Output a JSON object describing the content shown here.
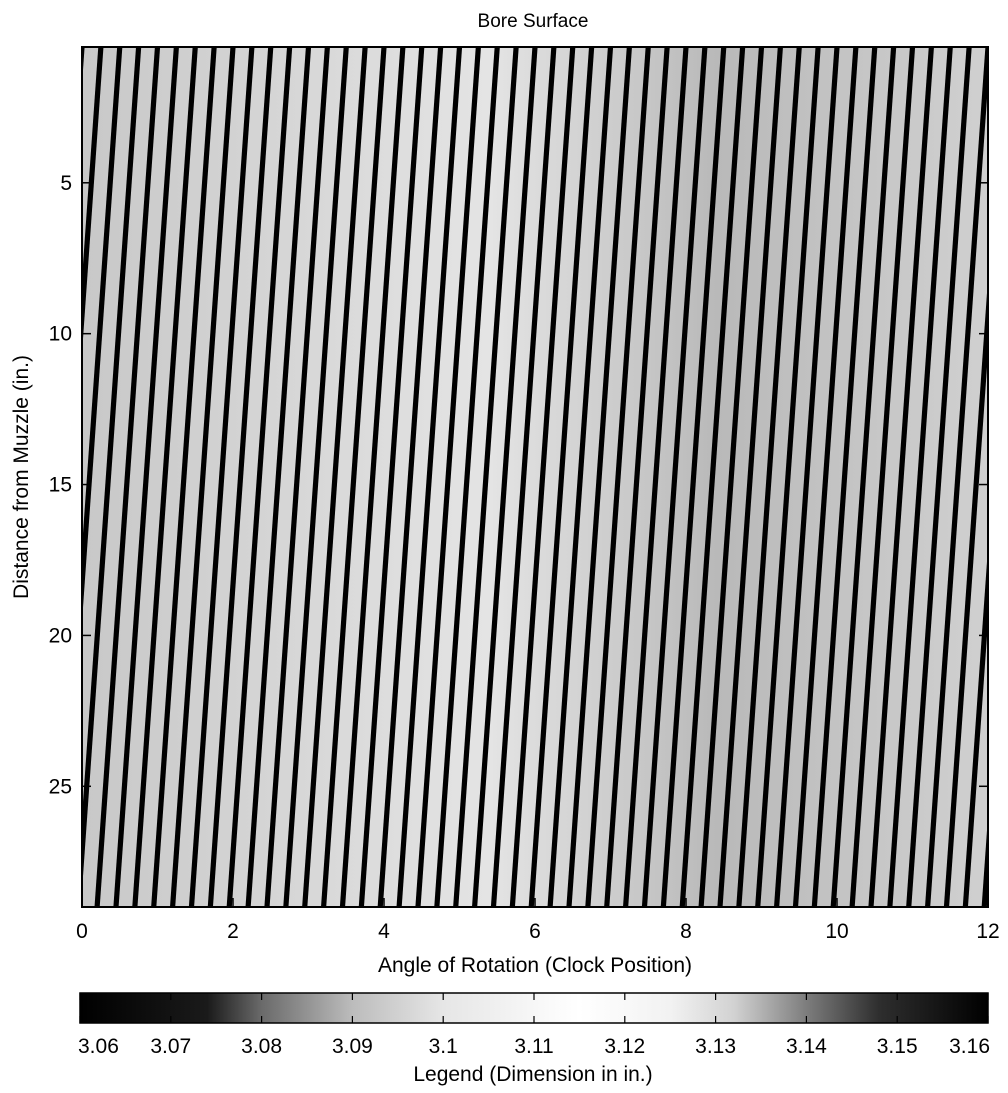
{
  "chart_data": {
    "type": "heatmap",
    "title": "Bore Surface",
    "xlabel": "Angle of Rotation (Clock Position)",
    "ylabel": "Distance from Muzzle (in.)",
    "xlim": [
      0,
      12
    ],
    "ylim": [
      29,
      0.5
    ],
    "x_ticks": [
      0,
      2,
      4,
      6,
      8,
      10,
      12
    ],
    "x_tick_labels": [
      "0",
      "2",
      "4",
      "6",
      "8",
      "10",
      "12"
    ],
    "y_ticks": [
      5,
      10,
      15,
      20,
      25
    ],
    "y_tick_labels": [
      "5",
      "10",
      "15",
      "20",
      "25"
    ],
    "y_reversed": true,
    "groove_count": 48,
    "groove_shift_clock_over_length": -0.8,
    "colorbar": {
      "label": "Legend (Dimension in in.)",
      "range": [
        3.06,
        3.16
      ],
      "ticks": [
        3.06,
        3.07,
        3.08,
        3.09,
        3.1,
        3.11,
        3.12,
        3.13,
        3.14,
        3.15,
        3.16
      ],
      "tick_labels": [
        "3.06",
        "3.07",
        "3.08",
        "3.09",
        "3.1",
        "3.11",
        "3.12",
        "3.13",
        "3.14",
        "3.15",
        "3.16"
      ],
      "colormap": "gray (dark at both ends, white in the middle)"
    },
    "grid": false,
    "legend": "colorbar below x-axis"
  }
}
